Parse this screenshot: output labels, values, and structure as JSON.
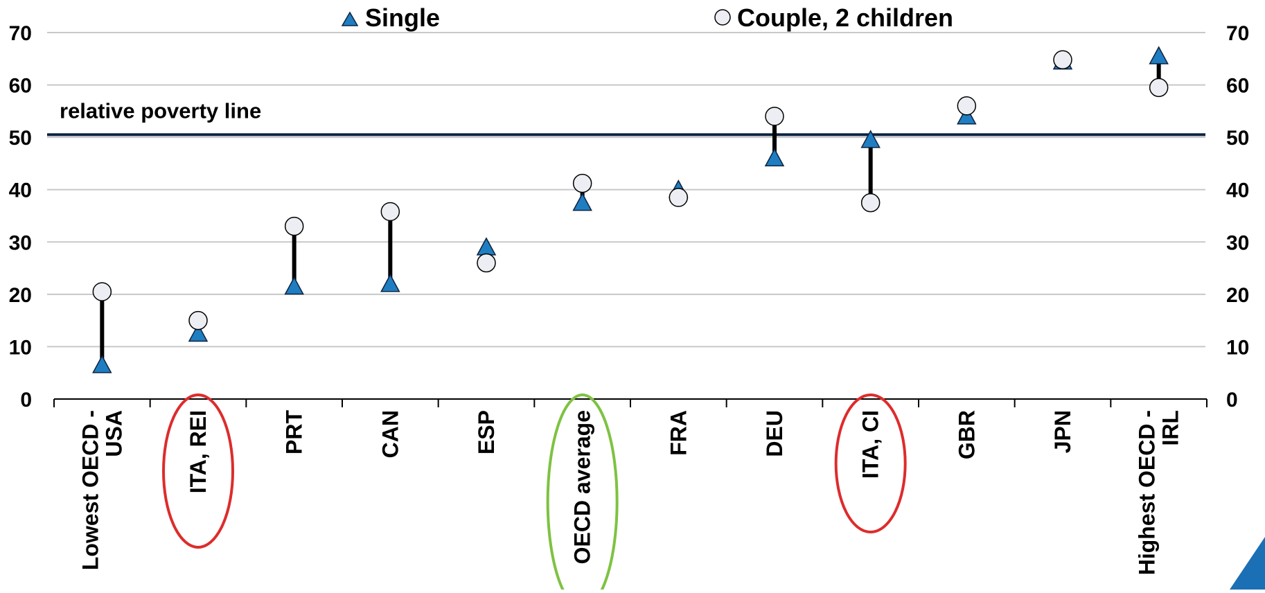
{
  "chart_data": {
    "type": "scatter",
    "title": "",
    "xlabel": "",
    "ylabel": "",
    "ylim": [
      0,
      70
    ],
    "yticks": [
      0,
      10,
      20,
      30,
      40,
      50,
      60,
      70
    ],
    "grid": true,
    "legend_position": "top",
    "categories": [
      [
        "Lowest OECD -",
        "USA"
      ],
      [
        "ITA, REI"
      ],
      [
        "PRT"
      ],
      [
        "CAN"
      ],
      [
        "ESP"
      ],
      [
        "OECD average"
      ],
      [
        "FRA"
      ],
      [
        "DEU"
      ],
      [
        "ITA, CI"
      ],
      [
        "GBR"
      ],
      [
        "JPN"
      ],
      [
        "Highest OECD -",
        "IRL"
      ]
    ],
    "series": [
      {
        "name": "Single",
        "marker": "triangle",
        "color": "#1f7ec1",
        "values": [
          6.5,
          12.5,
          21.5,
          22,
          29,
          37.5,
          40,
          46,
          49.5,
          54,
          64.5,
          65.5
        ]
      },
      {
        "name": "Couple, 2 children",
        "marker": "circle",
        "color": "#eceef3",
        "values": [
          20.5,
          15,
          33,
          35.8,
          26,
          41.2,
          38.5,
          54,
          37.5,
          56,
          64.8,
          59.5
        ]
      }
    ],
    "reference_line": {
      "label": "relative poverty line",
      "value": 50.5,
      "color": "#0d2240"
    },
    "highlights": [
      {
        "category_index": 1,
        "color": "#dd2c2c"
      },
      {
        "category_index": 5,
        "color": "#7ec242"
      },
      {
        "category_index": 8,
        "color": "#dd2c2c"
      }
    ]
  }
}
